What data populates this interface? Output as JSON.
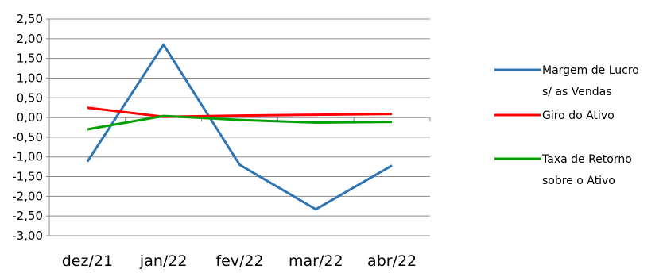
{
  "chart_data": {
    "type": "line",
    "title": "",
    "xlabel": "",
    "ylabel": "",
    "categories": [
      "dez/21",
      "jan/22",
      "fev/22",
      "mar/22",
      "abr/22"
    ],
    "ylim": [
      -3.0,
      2.5
    ],
    "ytick_values": [
      2.5,
      2.0,
      1.5,
      1.0,
      0.5,
      0.0,
      -0.5,
      -1.0,
      -1.5,
      -2.0,
      -2.5,
      -3.0
    ],
    "ytick_labels": [
      "2,50",
      "2,00",
      "1,50",
      "1,00",
      "0,50",
      "0,00",
      "-0,50",
      "-1,00",
      "-1,50",
      "-2,00",
      "-2,50",
      "-3,00"
    ],
    "grid": true,
    "legend_position": "right",
    "series": [
      {
        "name": "Margem de Lucro s/ as Vendas",
        "name_lines": [
          "Margem de Lucro",
          "s/ as Vendas"
        ],
        "color": "#2e75b6",
        "values": [
          -1.12,
          1.85,
          -1.2,
          -2.33,
          -1.22
        ]
      },
      {
        "name": "Giro do Ativo",
        "name_lines": [
          "Giro do Ativo"
        ],
        "color": "#ff0000",
        "values": [
          0.25,
          0.02,
          0.05,
          0.07,
          0.09
        ]
      },
      {
        "name": "Taxa de Retorno sobre o Ativo",
        "name_lines": [
          "Taxa de Retorno",
          "sobre o Ativo"
        ],
        "color": "#00a000",
        "values": [
          -0.3,
          0.04,
          -0.06,
          -0.13,
          -0.11
        ]
      }
    ]
  }
}
